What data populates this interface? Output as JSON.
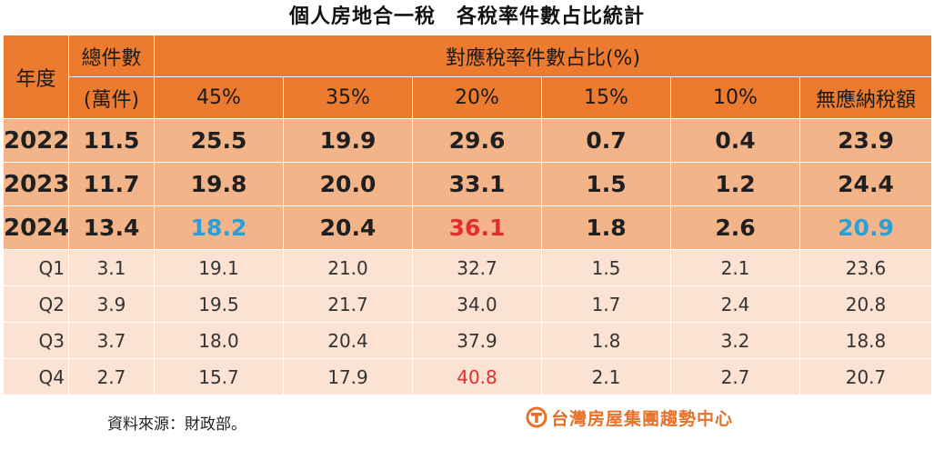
{
  "title": "個人房地合一稅　各稅率件數占比統計",
  "header": {
    "year": "年度",
    "total_line1": "總件數",
    "total_line2": "(萬件)",
    "ratio_group": "對應稅率件數占比(%)",
    "rates": [
      "45%",
      "35%",
      "20%",
      "15%",
      "10%",
      "無應納稅額"
    ]
  },
  "annual_rows": [
    {
      "year": "2022",
      "total": "11.5",
      "values": [
        "25.5",
        "19.9",
        "29.6",
        "0.7",
        "0.4",
        "23.9"
      ]
    },
    {
      "year": "2023",
      "total": "11.7",
      "values": [
        "19.8",
        "20.0",
        "33.1",
        "1.5",
        "1.2",
        "24.4"
      ]
    },
    {
      "year": "2024",
      "total": "13.4",
      "values": [
        "18.2",
        "20.4",
        "36.1",
        "1.8",
        "2.6",
        "20.9"
      ]
    }
  ],
  "quarter_rows": [
    {
      "quarter": "Q1",
      "total": "3.1",
      "values": [
        "19.1",
        "21.0",
        "32.7",
        "1.5",
        "2.1",
        "23.6"
      ]
    },
    {
      "quarter": "Q2",
      "total": "3.9",
      "values": [
        "19.5",
        "21.7",
        "34.0",
        "1.7",
        "2.4",
        "20.8"
      ]
    },
    {
      "quarter": "Q3",
      "total": "3.7",
      "values": [
        "18.0",
        "20.4",
        "37.9",
        "1.8",
        "3.2",
        "18.8"
      ]
    },
    {
      "quarter": "Q4",
      "total": "2.7",
      "values": [
        "15.7",
        "17.9",
        "40.8",
        "2.1",
        "2.7",
        "20.7"
      ]
    }
  ],
  "highlight_colors": {
    "blue": "#2aa0d8",
    "red": "#e0302a"
  },
  "source": "資料來源：財政部。",
  "logo": {
    "text": "台灣房屋集團趨勢中心",
    "icon": "taiwan-realty-logo-icon",
    "color": "#e8712a"
  }
}
